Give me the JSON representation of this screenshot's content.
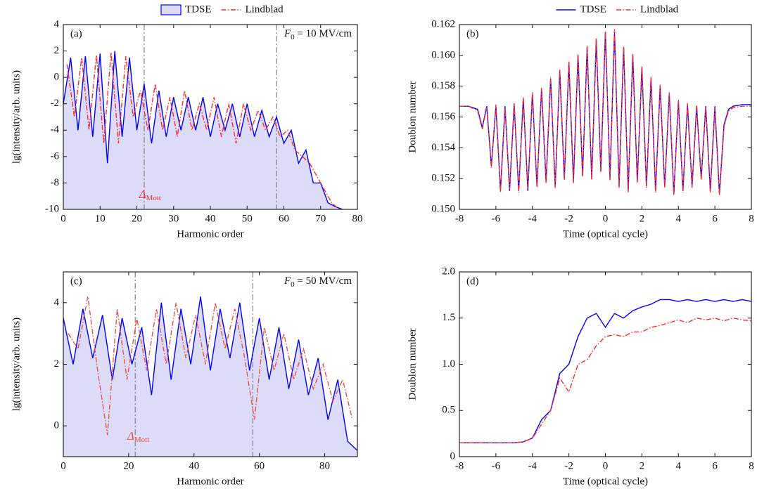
{
  "chart_data": [
    {
      "type": "line",
      "panel": "(a)",
      "x_label": "Harmonic order",
      "y_label": "lg(intensity/arb. units)",
      "annotation": {
        "base": "F",
        "sub": "0",
        "tail": " = 10 MV/cm"
      },
      "marker": {
        "base": "Δ",
        "sub": "Mott",
        "color": "#e0303a"
      },
      "vlines": [
        22,
        58
      ],
      "legend": "top",
      "xlim": [
        0,
        80
      ],
      "xticks": [
        0,
        10,
        20,
        30,
        40,
        50,
        60,
        70,
        80
      ],
      "ylim": [
        -10,
        4
      ],
      "yticks": [
        -10,
        -8,
        -6,
        -4,
        -2,
        0,
        2,
        4
      ],
      "series": [
        {
          "name": "TDSE",
          "color": "#0000ff",
          "area": true,
          "area_color": "#dcdcf8",
          "x": [
            0,
            2,
            4,
            6,
            8,
            10,
            12,
            14,
            16,
            18,
            20,
            22,
            24,
            26,
            28,
            30,
            32,
            34,
            36,
            38,
            40,
            42,
            44,
            46,
            48,
            50,
            52,
            54,
            56,
            58,
            60,
            62,
            64,
            66,
            68,
            70,
            72,
            74,
            76
          ],
          "values": [
            -2,
            1.5,
            -4,
            1.6,
            -4.5,
            1.8,
            -6.5,
            2.0,
            -4.5,
            1.5,
            -4,
            -0.5,
            -5,
            -1,
            -4.5,
            -1.5,
            -4,
            -1.5,
            -4,
            -1.5,
            -4.5,
            -2,
            -4,
            -2,
            -4.5,
            -2,
            -4.5,
            -2.5,
            -4.5,
            -3,
            -5,
            -4,
            -6.5,
            -5.5,
            -8,
            -8,
            -9.5,
            -9.8,
            -10
          ]
        },
        {
          "name": "Lindblad",
          "color": "#ff2a2a",
          "dash": "dashdot",
          "x": [
            1,
            3,
            5,
            7,
            9,
            11,
            13,
            15,
            17,
            19,
            21,
            23,
            25,
            27,
            29,
            31,
            33,
            35,
            37,
            39,
            41,
            43,
            45,
            47,
            49,
            51,
            53,
            55,
            57,
            59,
            61,
            63,
            65,
            67,
            69,
            71,
            73,
            75
          ],
          "values": [
            1,
            -3,
            1.5,
            -4,
            1.7,
            -5,
            1.9,
            -5,
            1.6,
            -3,
            -1,
            -4,
            -0.5,
            -4,
            -1.5,
            -4.5,
            -1,
            -4,
            -2,
            -4,
            -1.5,
            -4.5,
            -2,
            -5,
            -2,
            -4,
            -2.5,
            -4,
            -3,
            -4.5,
            -4,
            -5.5,
            -6,
            -6.5,
            -7.5,
            -8.5,
            -9.5,
            -10
          ]
        }
      ]
    },
    {
      "type": "line",
      "panel": "(b)",
      "x_label": "Time (optical cycle)",
      "y_label": "Doublon number",
      "legend": "top",
      "xlim": [
        -8,
        8
      ],
      "xticks": [
        -8,
        -6,
        -4,
        -2,
        0,
        2,
        4,
        6,
        8
      ],
      "ylim": [
        0.15,
        0.162
      ],
      "yticks": [
        {
          "value": 0.15,
          "label": "0.150"
        },
        0.152,
        0.154,
        0.156,
        0.158,
        {
          "value": 0.16,
          "label": "0.160"
        },
        0.162
      ],
      "series": [
        {
          "name": "TDSE",
          "color": "#0000ff",
          "x": [
            -8,
            -7.5,
            -7,
            -6.75,
            -6.5,
            -6.25,
            -6,
            -5.75,
            -5.5,
            -5.25,
            -5,
            -4.75,
            -4.5,
            -4.25,
            -4,
            -3.75,
            -3.5,
            -3.25,
            -3,
            -2.75,
            -2.5,
            -2.25,
            -2,
            -1.75,
            -1.5,
            -1.25,
            -1,
            -0.75,
            -0.5,
            -0.25,
            0,
            0.25,
            0.5,
            0.75,
            1,
            1.25,
            1.5,
            1.75,
            2,
            2.25,
            2.5,
            2.75,
            3,
            3.25,
            3.5,
            3.75,
            4,
            4.25,
            4.5,
            4.75,
            5,
            5.25,
            5.5,
            5.75,
            6,
            6.25,
            6.5,
            6.75,
            7,
            7.5,
            8
          ],
          "values": [
            0.1567,
            0.1567,
            0.1565,
            0.1553,
            0.1567,
            0.1528,
            0.1567,
            0.1512,
            0.1567,
            0.1512,
            0.1568,
            0.1512,
            0.1572,
            0.1512,
            0.1575,
            0.1515,
            0.1578,
            0.1518,
            0.1585,
            0.1515,
            0.159,
            0.152,
            0.1595,
            0.1518,
            0.16,
            0.1522,
            0.1605,
            0.152,
            0.161,
            0.1525,
            0.1615,
            0.152,
            0.1615,
            0.1515,
            0.1605,
            0.1512,
            0.16,
            0.1518,
            0.1592,
            0.1515,
            0.1585,
            0.1512,
            0.158,
            0.1515,
            0.1575,
            0.151,
            0.157,
            0.1512,
            0.1568,
            0.1515,
            0.1567,
            0.152,
            0.1567,
            0.1512,
            0.1567,
            0.151,
            0.1555,
            0.1565,
            0.1567,
            0.1568,
            0.1568
          ]
        },
        {
          "name": "Lindblad",
          "color": "#ff2a2a",
          "dash": "dashdot",
          "x": [
            -8,
            -7.5,
            -7,
            -6.75,
            -6.5,
            -6.25,
            -6,
            -5.75,
            -5.5,
            -5.25,
            -5,
            -4.75,
            -4.5,
            -4.25,
            -4,
            -3.75,
            -3.5,
            -3.25,
            -3,
            -2.75,
            -2.5,
            -2.25,
            -2,
            -1.75,
            -1.5,
            -1.25,
            -1,
            -0.75,
            -0.5,
            -0.25,
            0,
            0.25,
            0.5,
            0.75,
            1,
            1.25,
            1.5,
            1.75,
            2,
            2.25,
            2.5,
            2.75,
            3,
            3.25,
            3.5,
            3.75,
            4,
            4.25,
            4.5,
            4.75,
            5,
            5.25,
            5.5,
            5.75,
            6,
            6.25,
            6.5,
            6.75,
            7,
            7.5,
            8
          ],
          "values": [
            0.1567,
            0.1567,
            0.1564,
            0.1552,
            0.1566,
            0.1527,
            0.1568,
            0.1511,
            0.1566,
            0.1513,
            0.1569,
            0.1511,
            0.1573,
            0.1513,
            0.1576,
            0.1514,
            0.1579,
            0.1517,
            0.1586,
            0.1514,
            0.1591,
            0.1519,
            0.1596,
            0.1517,
            0.1601,
            0.1521,
            0.1606,
            0.1519,
            0.1611,
            0.1524,
            0.1616,
            0.1519,
            0.1617,
            0.1514,
            0.1606,
            0.1511,
            0.1601,
            0.1517,
            0.1593,
            0.1514,
            0.1586,
            0.1511,
            0.1581,
            0.1514,
            0.1576,
            0.1509,
            0.1571,
            0.1511,
            0.1569,
            0.1514,
            0.1568,
            0.1519,
            0.1566,
            0.1511,
            0.1566,
            0.1509,
            0.1554,
            0.1564,
            0.1566,
            0.1567,
            0.1567
          ]
        }
      ]
    },
    {
      "type": "line",
      "panel": "(c)",
      "x_label": "Harmonic order",
      "y_label": "lg(intensity/arb. units)",
      "annotation": {
        "base": "F",
        "sub": "0",
        "tail": " = 50 MV/cm"
      },
      "marker": {
        "base": "Δ",
        "sub": "Mott",
        "color": "#e8524a"
      },
      "vlines": [
        22,
        58
      ],
      "xlim": [
        0,
        90
      ],
      "xticks": [
        0,
        20,
        40,
        60,
        80
      ],
      "ylim": [
        -1,
        5
      ],
      "yticks": [
        0,
        2,
        4
      ],
      "series": [
        {
          "name": "TDSE",
          "color": "#0000ff",
          "area": true,
          "area_color": "#dcdcf8",
          "x": [
            0,
            3,
            6,
            9,
            12,
            15,
            18,
            21,
            24,
            27,
            30,
            33,
            36,
            39,
            42,
            45,
            48,
            51,
            54,
            57,
            60,
            63,
            66,
            69,
            72,
            75,
            78,
            81,
            84,
            87,
            90
          ],
          "values": [
            3.5,
            2.0,
            3.8,
            2.2,
            3.6,
            1.5,
            3.5,
            2.0,
            3.2,
            1.0,
            4.0,
            1.5,
            3.8,
            2.0,
            4.2,
            1.8,
            3.8,
            2.2,
            4.0,
            1.8,
            3.5,
            1.5,
            3.2,
            1.2,
            2.8,
            1.0,
            2.2,
            0.2,
            1.5,
            -0.5,
            -0.8
          ]
        },
        {
          "name": "Lindblad",
          "color": "#e8524a",
          "dash": "dashdot",
          "x": [
            1.5,
            4.5,
            7.5,
            10.5,
            13.5,
            16.5,
            19.5,
            22.5,
            25.5,
            28.5,
            31.5,
            34.5,
            37.5,
            40.5,
            43.5,
            46.5,
            49.5,
            52.5,
            55.5,
            58.5,
            61.5,
            64.5,
            67.5,
            70.5,
            73.5,
            76.5,
            79.5,
            82.5,
            85.5,
            88.5
          ],
          "values": [
            3.0,
            2.5,
            4.2,
            1.8,
            -0.3,
            3.8,
            1.5,
            3.5,
            1.8,
            3.8,
            2.0,
            4.0,
            2.2,
            3.6,
            2.0,
            4.0,
            2.5,
            3.8,
            2.2,
            0.2,
            3.2,
            1.8,
            3.0,
            1.5,
            2.5,
            1.2,
            2.0,
            0.8,
            1.5,
            0.2
          ]
        }
      ]
    },
    {
      "type": "line",
      "panel": "(d)",
      "x_label": "Time (optical cycle)",
      "y_label": "Doublon number",
      "xlim": [
        -8,
        8
      ],
      "xticks": [
        -8,
        -6,
        -4,
        -2,
        0,
        2,
        4,
        6,
        8
      ],
      "ylim": [
        0,
        2
      ],
      "yticks": [
        0,
        0.5,
        {
          "value": 1,
          "label": "1.0"
        },
        1.5,
        {
          "value": 2,
          "label": "2.0"
        }
      ],
      "series": [
        {
          "name": "TDSE",
          "color": "#0000ff",
          "x": [
            -8,
            -7.5,
            -7,
            -6.5,
            -6,
            -5.5,
            -5,
            -4.5,
            -4,
            -3.5,
            -3,
            -2.5,
            -2,
            -1.5,
            -1,
            -0.5,
            0,
            0.5,
            1,
            1.5,
            2,
            2.5,
            3,
            3.5,
            4,
            4.5,
            5,
            5.5,
            6,
            6.5,
            7,
            7.5,
            8
          ],
          "values": [
            0.15,
            0.15,
            0.15,
            0.15,
            0.15,
            0.15,
            0.15,
            0.16,
            0.2,
            0.4,
            0.5,
            0.9,
            1.0,
            1.3,
            1.5,
            1.55,
            1.4,
            1.55,
            1.5,
            1.58,
            1.62,
            1.65,
            1.7,
            1.7,
            1.68,
            1.7,
            1.68,
            1.7,
            1.68,
            1.7,
            1.68,
            1.7,
            1.68
          ]
        },
        {
          "name": "Lindblad",
          "color": "#ff2a2a",
          "dash": "dashdot",
          "x": [
            -8,
            -7.5,
            -7,
            -6.5,
            -6,
            -5.5,
            -5,
            -4.5,
            -4,
            -3.5,
            -3,
            -2.5,
            -2,
            -1.5,
            -1,
            -0.5,
            0,
            0.5,
            1,
            1.5,
            2,
            2.5,
            3,
            3.5,
            4,
            4.5,
            5,
            5.5,
            6,
            6.5,
            7,
            7.5,
            8
          ],
          "values": [
            0.15,
            0.15,
            0.15,
            0.15,
            0.15,
            0.15,
            0.15,
            0.16,
            0.2,
            0.35,
            0.5,
            0.85,
            0.7,
            1.0,
            1.05,
            1.2,
            1.3,
            1.32,
            1.3,
            1.35,
            1.35,
            1.4,
            1.42,
            1.45,
            1.48,
            1.45,
            1.5,
            1.48,
            1.5,
            1.47,
            1.5,
            1.48,
            1.47
          ]
        }
      ]
    }
  ]
}
